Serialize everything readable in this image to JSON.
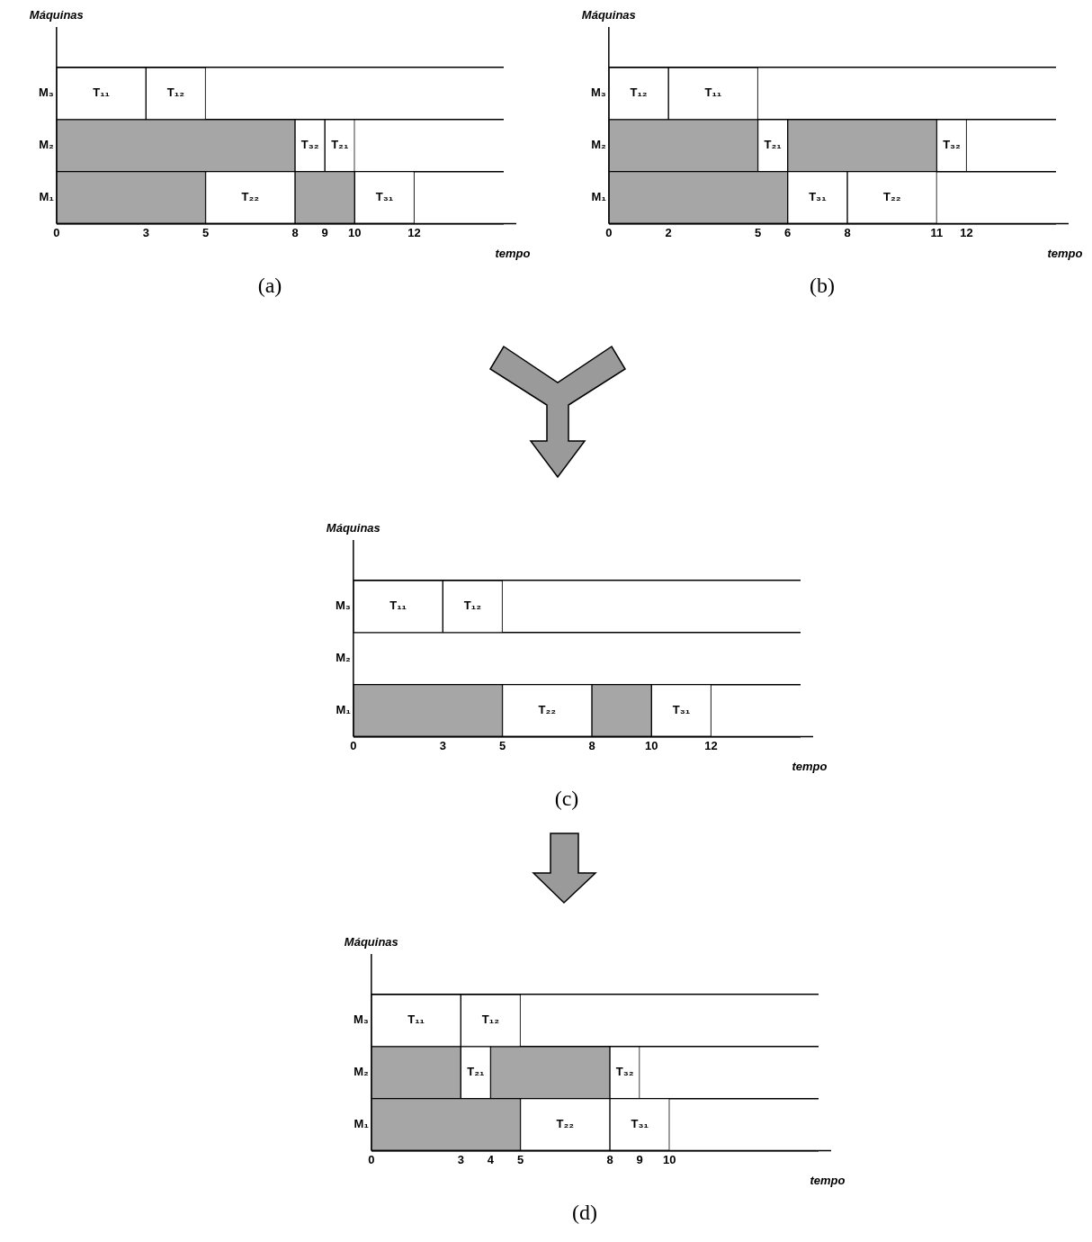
{
  "chart_data": [
    {
      "type": "bar",
      "orientation": "horizontal",
      "stacked": true,
      "categories": [
        "M₃",
        "M₂",
        "M₁"
      ],
      "xlabel": "tempo",
      "ylabel": "Máquinas",
      "xlim": [
        0,
        15
      ],
      "xticks": [
        0,
        3,
        5,
        8,
        9,
        10,
        12
      ],
      "grid": "y",
      "annotations": [
        "(a)"
      ],
      "series": [
        {
          "values": [
            3,
            8,
            5
          ],
          "colors": [
            "#ffffff",
            "#a6a6a6",
            "#a6a6a6"
          ],
          "value_labels": [
            "T₁₁",
            null,
            null
          ]
        },
        {
          "values": [
            2,
            1,
            3
          ],
          "colors": [
            "#ffffff",
            "#ffffff",
            "#ffffff"
          ],
          "value_labels": [
            "T₁₂",
            "T₃₂",
            "T₂₂"
          ]
        },
        {
          "values": [
            null,
            1,
            2
          ],
          "colors": [
            "#ffffff",
            "#ffffff",
            "#a6a6a6"
          ],
          "value_labels": [
            null,
            "T₂₁",
            null
          ]
        },
        {
          "values": [
            null,
            null,
            2
          ],
          "colors": [
            "#ffffff",
            "#ffffff",
            "#ffffff"
          ],
          "value_labels": [
            null,
            null,
            "T₃₁"
          ]
        }
      ]
    },
    {
      "type": "bar",
      "orientation": "horizontal",
      "stacked": true,
      "categories": [
        "M₃",
        "M₂",
        "M₁"
      ],
      "xlabel": "tempo",
      "ylabel": "Máquinas",
      "xlim": [
        0,
        15
      ],
      "xticks": [
        0,
        2,
        5,
        6,
        8,
        11,
        12
      ],
      "grid": "y",
      "annotations": [
        "(b)"
      ],
      "series": [
        {
          "values": [
            2,
            5,
            6
          ],
          "colors": [
            "#ffffff",
            "#a6a6a6",
            "#a6a6a6"
          ],
          "value_labels": [
            "T₁₂",
            null,
            null
          ]
        },
        {
          "values": [
            3,
            1,
            2
          ],
          "colors": [
            "#ffffff",
            "#ffffff",
            "#ffffff"
          ],
          "value_labels": [
            "T₁₁",
            "T₂₁",
            "T₃₁"
          ]
        },
        {
          "values": [
            null,
            5,
            3
          ],
          "colors": [
            "#ffffff",
            "#a6a6a6",
            "#ffffff"
          ],
          "value_labels": [
            null,
            null,
            "T₂₂"
          ]
        },
        {
          "values": [
            null,
            1,
            null
          ],
          "colors": [
            "#ffffff",
            "#ffffff",
            "#ffffff"
          ],
          "value_labels": [
            null,
            "T₃₂",
            null
          ]
        }
      ]
    },
    {
      "type": "bar",
      "orientation": "horizontal",
      "stacked": true,
      "categories": [
        "M₃",
        "M₂",
        "M₁"
      ],
      "xlabel": "tempo",
      "ylabel": "Máquinas",
      "xlim": [
        0,
        15
      ],
      "xticks": [
        0,
        3,
        5,
        8,
        10,
        12
      ],
      "grid": "y",
      "annotations": [
        "(c)"
      ],
      "series": [
        {
          "values": [
            3,
            null,
            5
          ],
          "colors": [
            "#ffffff",
            "#ffffff",
            "#a6a6a6"
          ],
          "value_labels": [
            "T₁₁",
            null,
            null
          ]
        },
        {
          "values": [
            2,
            null,
            3
          ],
          "colors": [
            "#ffffff",
            "#ffffff",
            "#ffffff"
          ],
          "value_labels": [
            "T₁₂",
            null,
            "T₂₂"
          ]
        },
        {
          "values": [
            null,
            null,
            2
          ],
          "colors": [
            "#ffffff",
            "#ffffff",
            "#a6a6a6"
          ],
          "value_labels": [
            null,
            null,
            null
          ]
        },
        {
          "values": [
            null,
            null,
            2
          ],
          "colors": [
            "#ffffff",
            "#ffffff",
            "#ffffff"
          ],
          "value_labels": [
            null,
            null,
            "T₃₁"
          ]
        }
      ]
    },
    {
      "type": "bar",
      "orientation": "horizontal",
      "stacked": true,
      "categories": [
        "M₃",
        "M₂",
        "M₁"
      ],
      "xlabel": "tempo",
      "ylabel": "Máquinas",
      "xlim": [
        0,
        15
      ],
      "xticks": [
        0,
        3,
        4,
        5,
        8,
        9,
        10
      ],
      "grid": "y",
      "annotations": [
        "(d)"
      ],
      "series": [
        {
          "values": [
            3,
            3,
            5
          ],
          "colors": [
            "#ffffff",
            "#a6a6a6",
            "#a6a6a6"
          ],
          "value_labels": [
            "T₁₁",
            null,
            null
          ]
        },
        {
          "values": [
            2,
            1,
            3
          ],
          "colors": [
            "#ffffff",
            "#ffffff",
            "#ffffff"
          ],
          "value_labels": [
            "T₁₂",
            "T₂₁",
            "T₂₂"
          ]
        },
        {
          "values": [
            null,
            4,
            2
          ],
          "colors": [
            "#ffffff",
            "#a6a6a6",
            "#ffffff"
          ],
          "value_labels": [
            null,
            null,
            "T₃₁"
          ]
        },
        {
          "values": [
            null,
            1,
            null
          ],
          "colors": [
            "#ffffff",
            "#ffffff",
            "#ffffff"
          ],
          "value_labels": [
            null,
            "T₃₂",
            null
          ]
        }
      ]
    }
  ]
}
